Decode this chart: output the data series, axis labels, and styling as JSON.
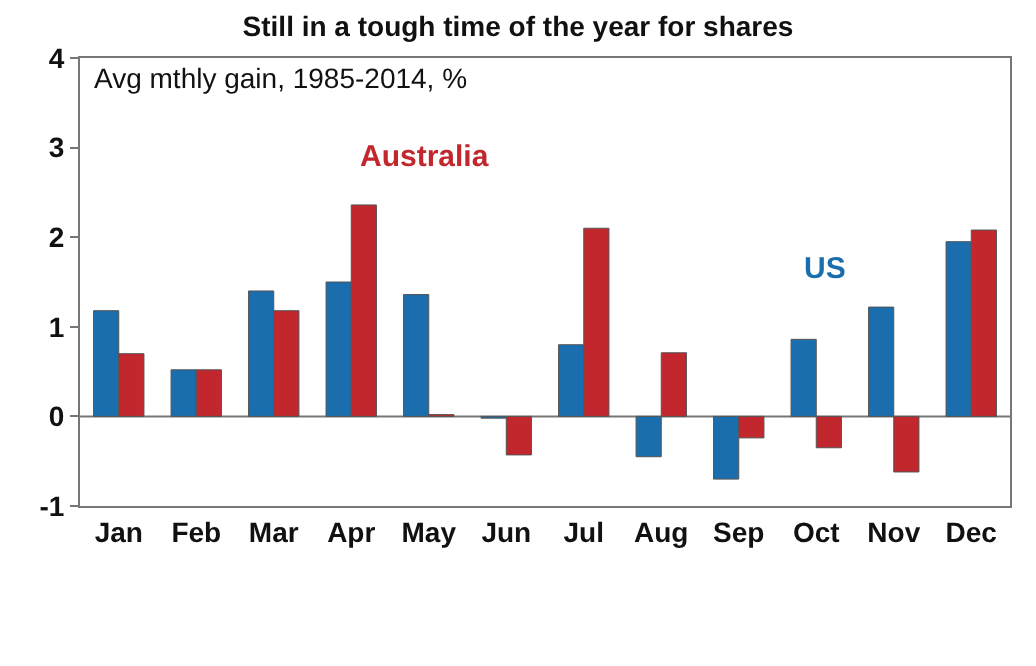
{
  "chart_data": {
    "type": "bar",
    "title": "Still in a tough time of the year for shares",
    "subtitle": "Avg mthly gain, 1985-2014, %",
    "categories": [
      "Jan",
      "Feb",
      "Mar",
      "Apr",
      "May",
      "Jun",
      "Jul",
      "Aug",
      "Sep",
      "Oct",
      "Nov",
      "Dec"
    ],
    "series": [
      {
        "name": "US",
        "color": "#1b6ead",
        "values": [
          1.18,
          0.52,
          1.4,
          1.5,
          1.36,
          -0.02,
          0.8,
          -0.45,
          -0.7,
          0.86,
          1.22,
          1.95
        ]
      },
      {
        "name": "Australia",
        "color": "#c1272d",
        "values": [
          0.7,
          0.52,
          1.18,
          2.36,
          0.02,
          -0.43,
          2.1,
          0.71,
          -0.24,
          -0.35,
          -0.62,
          2.08
        ]
      }
    ],
    "ylim": [
      -1,
      4
    ],
    "yticks": [
      -1,
      0,
      1,
      2,
      3,
      4
    ],
    "legend": false,
    "ref_lines": [
      {
        "axis": "y",
        "value": 0,
        "color": "#777777"
      }
    ]
  }
}
